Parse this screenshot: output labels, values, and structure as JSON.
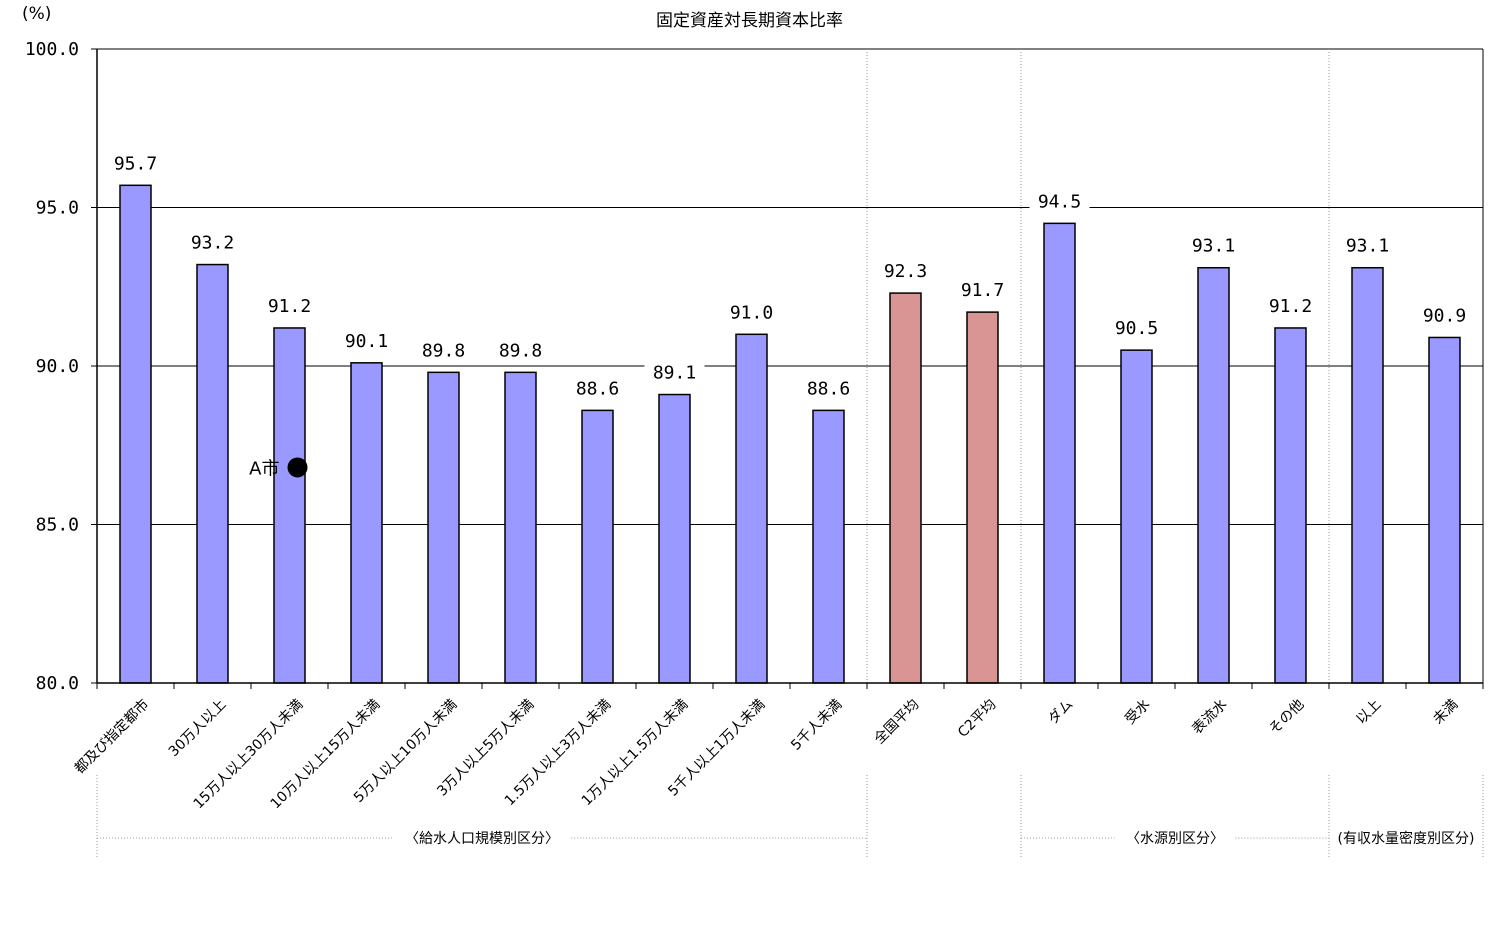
{
  "chart_data": {
    "type": "bar",
    "title": "固定資産対長期資本比率",
    "ylabel": "(%)",
    "ylim": [
      80,
      100
    ],
    "yticks": [
      "80.0",
      "85.0",
      "90.0",
      "95.0",
      "100.0"
    ],
    "grid": true,
    "categories": [
      "都及び指定都市",
      "30万人以上",
      "15万人以上30万人未満",
      "10万人以上15万人未満",
      "5万人以上10万人未満",
      "3万人以上5万人未満",
      "1.5万人以上3万人未満",
      "1万人以上1.5万人未満",
      "5千人以上1万人未満",
      "5千人未満",
      "全国平均",
      "C2平均",
      "ダム",
      "受水",
      "表流水",
      "その他",
      "以上",
      "未満"
    ],
    "values": [
      95.7,
      93.2,
      91.2,
      90.1,
      89.8,
      89.8,
      88.6,
      89.1,
      91.0,
      88.6,
      92.3,
      91.7,
      94.5,
      90.5,
      93.1,
      91.2,
      93.1,
      90.9
    ],
    "value_labels": [
      "95.7",
      "93.2",
      "91.2",
      "90.1",
      "89.8",
      "89.8",
      "88.6",
      "89.1",
      "91.0",
      "88.6",
      "92.3",
      "91.7",
      "94.5",
      "90.5",
      "93.1",
      "91.2",
      "93.1",
      "90.9"
    ],
    "bar_colors": [
      "#9999ff",
      "#9999ff",
      "#9999ff",
      "#9999ff",
      "#9999ff",
      "#9999ff",
      "#9999ff",
      "#9999ff",
      "#9999ff",
      "#9999ff",
      "#d99594",
      "#d99594",
      "#9999ff",
      "#9999ff",
      "#9999ff",
      "#9999ff",
      "#9999ff",
      "#9999ff"
    ],
    "groups": [
      {
        "label": "〈給水人口規模別区分〉",
        "start": 0,
        "end": 9
      },
      {
        "label": "〈水源別区分〉",
        "start": 12,
        "end": 15
      },
      {
        "label": "(有収水量密度別区分)",
        "start": 16,
        "end": 17
      }
    ],
    "marker": {
      "label": "A市",
      "category_index": 2,
      "value": 86.8,
      "color": "#000000"
    }
  }
}
